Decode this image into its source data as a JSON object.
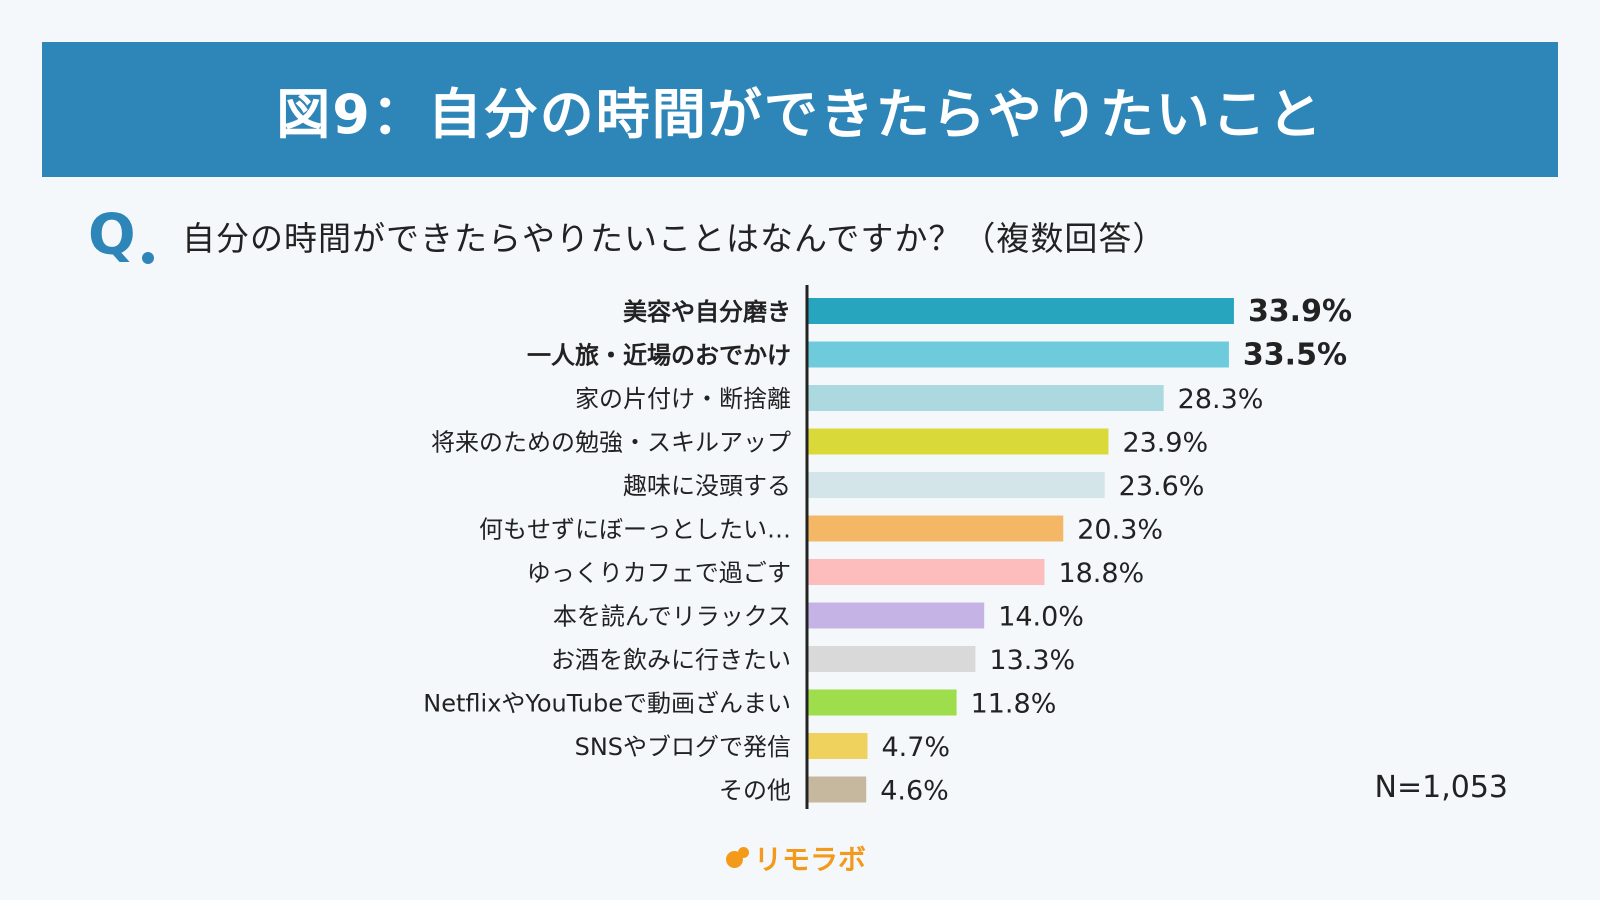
{
  "header": {
    "title": "図9：自分の時間ができたらやりたいこと"
  },
  "question": {
    "marker": "Q",
    "text": "自分の時間ができたらやりたいことはなんですか？（複数回答）"
  },
  "sample_size": "N=1,053",
  "logo": {
    "text": "リモラボ",
    "icon": "dots-logo-icon",
    "color": "#f39a1b"
  },
  "colors": {
    "banner": "#2e86b8",
    "axis": "#222222"
  },
  "chart_data": {
    "type": "bar",
    "orientation": "horizontal",
    "unit": "%",
    "xlim": [
      0,
      40
    ],
    "grid": false,
    "legend": "none",
    "categories": [
      "美容や自分磨き",
      "一人旅・近場のおでかけ",
      "家の片付け・断捨離",
      "将来のための勉強・スキルアップ",
      "趣味に没頭する",
      "何もせずにぼーっとしたい…",
      "ゆっくりカフェで過ごす",
      "本を読んでリラックス",
      "お酒を飲みに行きたい",
      "NetflixやYouTubeで動画ざんまい",
      "SNSやブログで発信",
      "その他"
    ],
    "values": [
      33.9,
      33.5,
      28.3,
      23.9,
      23.6,
      20.3,
      18.8,
      14.0,
      13.3,
      11.8,
      4.7,
      4.6
    ],
    "value_labels": [
      "33.9%",
      "33.5%",
      "28.3%",
      "23.9%",
      "23.6%",
      "20.3%",
      "18.8%",
      "14.0%",
      "13.3%",
      "11.8%",
      "4.7%",
      "4.6%"
    ],
    "highlighted": [
      true,
      true,
      false,
      false,
      false,
      false,
      false,
      false,
      false,
      false,
      false,
      false
    ],
    "bar_colors": [
      "#27a5bf",
      "#6ecbdc",
      "#acd9e0",
      "#d9d93a",
      "#d3e5e9",
      "#f4b765",
      "#fdbdbd",
      "#c4b3e4",
      "#d9d9d9",
      "#9edd4b",
      "#efd25d",
      "#c6b89f"
    ]
  }
}
